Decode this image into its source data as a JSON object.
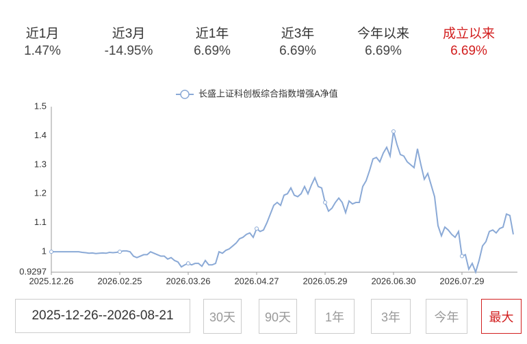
{
  "stats": [
    {
      "label": "近1月",
      "value": "1.47%"
    },
    {
      "label": "近3月",
      "value": "-14.95%"
    },
    {
      "label": "近1年",
      "value": "6.69%"
    },
    {
      "label": "近3年",
      "value": "6.69%"
    },
    {
      "label": "今年以来",
      "value": "6.69%"
    },
    {
      "label": "成立以来",
      "value": "6.69%"
    }
  ],
  "chart_data": {
    "type": "line",
    "categories": [
      "2025.12.26",
      null,
      null,
      null,
      null,
      null,
      null,
      null,
      null,
      null,
      null,
      null,
      null,
      null,
      null,
      null,
      null,
      null,
      null,
      null,
      "2026.02.25",
      null,
      null,
      null,
      null,
      null,
      null,
      null,
      null,
      null,
      null,
      null,
      null,
      null,
      null,
      null,
      null,
      null,
      null,
      null,
      "2026.03.26",
      null,
      null,
      null,
      null,
      null,
      null,
      null,
      null,
      null,
      null,
      null,
      null,
      null,
      null,
      null,
      null,
      null,
      null,
      null,
      "2026.04.27",
      null,
      null,
      null,
      null,
      null,
      null,
      null,
      null,
      null,
      null,
      null,
      null,
      null,
      null,
      null,
      null,
      null,
      null,
      null,
      "2026.05.29",
      null,
      null,
      null,
      null,
      null,
      null,
      null,
      null,
      null,
      null,
      null,
      null,
      null,
      null,
      null,
      null,
      null,
      null,
      null,
      "2026.06.30",
      null,
      null,
      null,
      null,
      null,
      null,
      null,
      null,
      null,
      null,
      null,
      null,
      null,
      null,
      null,
      null,
      null,
      null,
      null,
      "2026.07.29",
      null,
      null,
      null,
      null,
      null,
      null,
      null,
      null,
      null,
      null,
      null,
      null,
      null,
      null,
      null
    ],
    "series": [
      {
        "name": "长盛上证科创板综合指数增强A净值",
        "color": "#8aa9d6",
        "values": [
          1,
          1,
          1,
          1,
          1,
          1,
          1,
          1,
          1,
          0.998,
          0.997,
          0.995,
          0.996,
          0.994,
          0.995,
          0.996,
          0.995,
          0.998,
          0.997,
          0.998,
          1,
          1.003,
          1.003,
          1,
          0.985,
          0.98,
          0.985,
          0.99,
          0.99,
          1,
          0.995,
          0.99,
          0.985,
          0.985,
          0.975,
          0.98,
          0.97,
          0.965,
          0.948,
          0.955,
          0.96,
          0.955,
          0.96,
          0.96,
          0.95,
          0.97,
          0.955,
          0.955,
          0.96,
          1,
          0.995,
          1.005,
          1.01,
          1.02,
          1.03,
          1.045,
          1.05,
          1.06,
          1.065,
          1.05,
          1.08,
          1.07,
          1.075,
          1.1,
          1.13,
          1.16,
          1.17,
          1.16,
          1.195,
          1.2,
          1.22,
          1.195,
          1.19,
          1.2,
          1.225,
          1.2,
          1.23,
          1.255,
          1.225,
          1.22,
          1.17,
          1.14,
          1.15,
          1.17,
          1.185,
          1.17,
          1.135,
          1.175,
          1.165,
          1.17,
          1.17,
          1.225,
          1.245,
          1.28,
          1.32,
          1.325,
          1.31,
          1.34,
          1.36,
          1.33,
          1.415,
          1.37,
          1.335,
          1.33,
          1.31,
          1.3,
          1.29,
          1.355,
          1.3,
          1.25,
          1.27,
          1.23,
          1.19,
          1.09,
          1.055,
          1.085,
          1.075,
          1.06,
          1.05,
          1.07,
          0.985,
          0.99,
          0.94,
          0.96,
          0.93,
          0.97,
          1.02,
          1.035,
          1.07,
          1.075,
          1.065,
          1.08,
          1.085,
          1.13,
          1.125,
          1.06
        ]
      }
    ],
    "ylim": [
      0.9297,
      1.5
    ],
    "yticks": [
      0.9297,
      1,
      1.1,
      1.2,
      1.3,
      1.4,
      1.5
    ],
    "markers_every": 20
  },
  "controls": {
    "start": "2025-12-26",
    "separator": "--",
    "end": "2026-08-21",
    "buttons": [
      "30天",
      "90天",
      "1年",
      "3年",
      "今年",
      "最大"
    ]
  }
}
